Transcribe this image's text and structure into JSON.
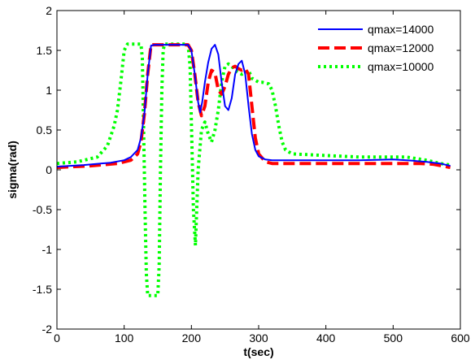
{
  "chart_data": {
    "type": "line",
    "title": "",
    "xlabel": "t(sec)",
    "ylabel": "sigma(rad)",
    "xlim": [
      0,
      600
    ],
    "ylim": [
      -2,
      2
    ],
    "xticks": [
      0,
      100,
      200,
      300,
      400,
      500,
      600
    ],
    "yticks": [
      -2,
      -1.5,
      -1,
      -0.5,
      0,
      0.5,
      1,
      1.5,
      2
    ],
    "xtick_labels": [
      "0",
      "100",
      "200",
      "300",
      "400",
      "500",
      "600"
    ],
    "ytick_labels": [
      "-2",
      "-1.5",
      "-1",
      "-0.5",
      "0",
      "0.5",
      "1",
      "1.5",
      "2"
    ],
    "grid": false,
    "legend_position": "top-right",
    "series": [
      {
        "name": "qmax=14000",
        "color": "#0000ff",
        "style": "solid",
        "x": [
          0,
          40,
          80,
          100,
          110,
          120,
          125,
          130,
          135,
          140,
          145,
          150,
          160,
          180,
          195,
          200,
          205,
          210,
          213,
          216,
          220,
          225,
          230,
          235,
          240,
          245,
          250,
          255,
          260,
          265,
          270,
          275,
          280,
          285,
          290,
          295,
          300,
          310,
          320,
          350,
          400,
          450,
          500,
          520,
          550,
          570,
          585
        ],
        "y": [
          0.04,
          0.06,
          0.09,
          0.12,
          0.16,
          0.25,
          0.4,
          0.7,
          1.2,
          1.56,
          1.57,
          1.57,
          1.57,
          1.57,
          1.57,
          1.5,
          1.2,
          0.85,
          0.72,
          0.85,
          1.1,
          1.35,
          1.52,
          1.57,
          1.45,
          1.1,
          0.8,
          0.75,
          0.9,
          1.2,
          1.33,
          1.37,
          1.2,
          0.8,
          0.45,
          0.25,
          0.17,
          0.13,
          0.12,
          0.12,
          0.12,
          0.12,
          0.13,
          0.12,
          0.1,
          0.08,
          0.05
        ]
      },
      {
        "name": "qmax=12000",
        "color": "#ff0000",
        "style": "dashed",
        "x": [
          0,
          50,
          90,
          110,
          120,
          125,
          130,
          135,
          140,
          145,
          150,
          160,
          180,
          195,
          200,
          205,
          210,
          215,
          220,
          225,
          230,
          235,
          240,
          245,
          250,
          255,
          260,
          265,
          270,
          275,
          280,
          285,
          290,
          295,
          300,
          310,
          320,
          350,
          400,
          450,
          500,
          540,
          560,
          585
        ],
        "y": [
          0.03,
          0.05,
          0.08,
          0.12,
          0.2,
          0.35,
          0.7,
          1.2,
          1.57,
          1.57,
          1.57,
          1.57,
          1.57,
          1.57,
          1.5,
          1.2,
          0.85,
          0.68,
          0.8,
          1.1,
          1.25,
          1.22,
          1.0,
          0.95,
          1.05,
          1.2,
          1.28,
          1.3,
          1.27,
          1.25,
          1.27,
          1.2,
          0.8,
          0.4,
          0.2,
          0.1,
          0.08,
          0.08,
          0.08,
          0.08,
          0.08,
          0.08,
          0.07,
          0.03
        ]
      },
      {
        "name": "qmax=10000",
        "color": "#00ff00",
        "style": "dotted",
        "x": [
          0,
          30,
          60,
          75,
          85,
          90,
          95,
          100,
          105,
          110,
          115,
          120,
          125,
          127,
          129,
          131,
          133,
          135,
          140,
          150,
          152,
          154,
          156,
          158,
          160,
          165,
          170,
          190,
          195,
          198,
          200,
          203,
          206,
          210,
          215,
          220,
          225,
          230,
          235,
          240,
          245,
          250,
          255,
          260,
          265,
          270,
          275,
          280,
          285,
          290,
          300,
          305,
          315,
          320,
          325,
          330,
          335,
          340,
          350,
          400,
          450,
          500,
          520,
          550,
          570,
          585
        ],
        "y": [
          0.08,
          0.1,
          0.16,
          0.3,
          0.55,
          0.75,
          1.1,
          1.5,
          1.58,
          1.58,
          1.58,
          1.58,
          1.58,
          1.4,
          0.5,
          -0.5,
          -1.3,
          -1.58,
          -1.58,
          -1.58,
          -1.2,
          0.0,
          1.0,
          1.5,
          1.58,
          1.58,
          1.58,
          1.58,
          1.58,
          1.3,
          0.6,
          -0.5,
          -0.95,
          0.0,
          0.5,
          0.6,
          0.45,
          0.35,
          0.5,
          0.75,
          1.1,
          1.3,
          1.33,
          1.3,
          1.25,
          1.22,
          1.2,
          1.22,
          1.25,
          1.15,
          1.1,
          1.1,
          1.08,
          1.0,
          0.8,
          0.55,
          0.35,
          0.25,
          0.2,
          0.18,
          0.16,
          0.16,
          0.16,
          0.12,
          0.08,
          0.06
        ]
      }
    ]
  }
}
